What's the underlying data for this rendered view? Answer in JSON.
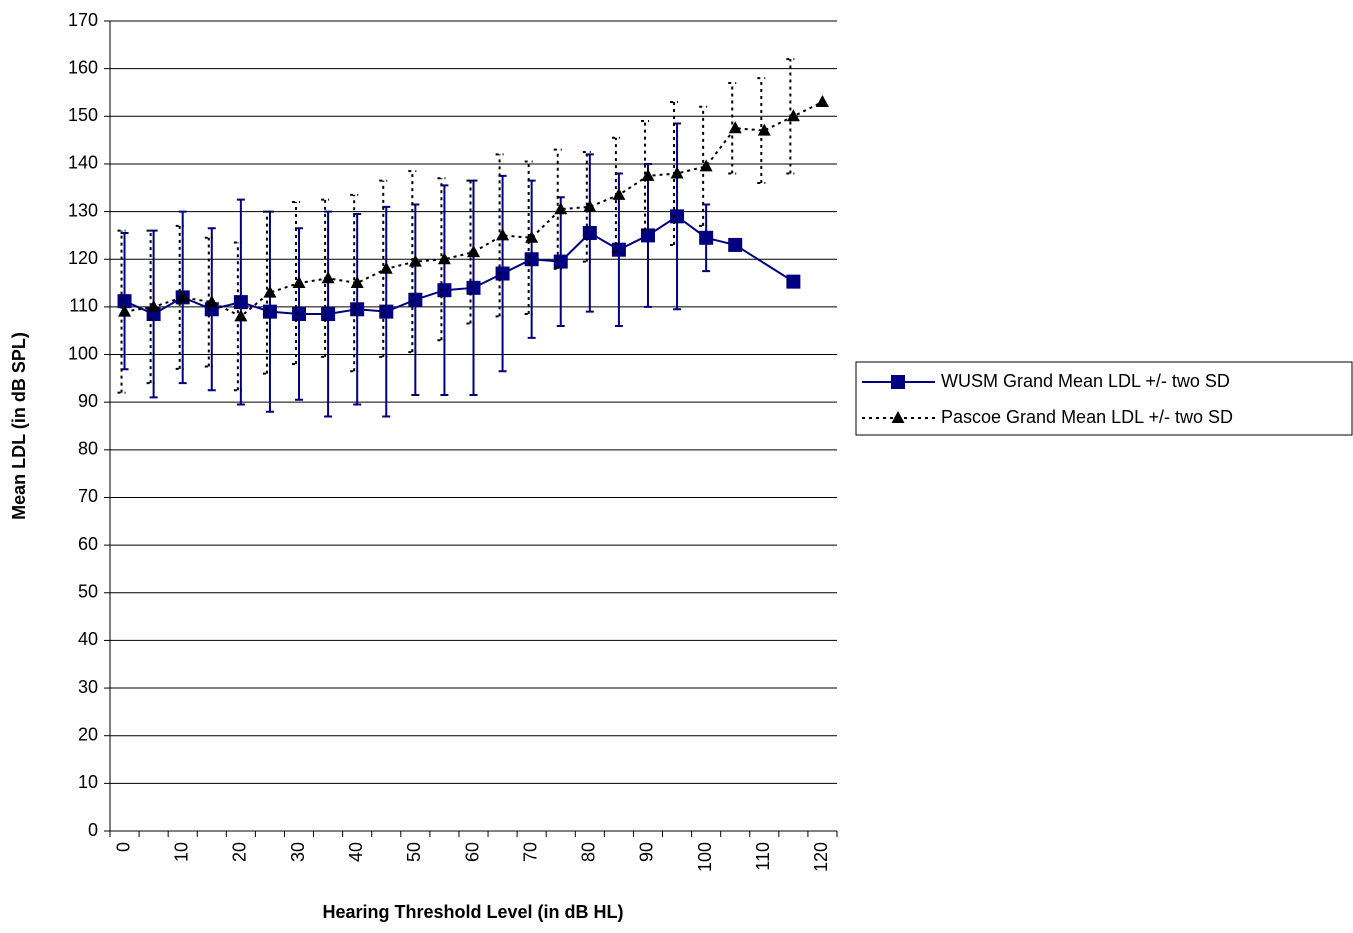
{
  "chart_data": {
    "type": "line",
    "x_label": "Hearing Threshold Level (in dB HL)",
    "y_label": "Mean LDL (in dB SPL)",
    "categories": [
      "0",
      null,
      "10",
      null,
      "20",
      null,
      "30",
      null,
      "40",
      null,
      "50",
      null,
      "60",
      null,
      "70",
      null,
      "80",
      null,
      "90",
      null,
      "100",
      null,
      "110",
      null,
      "120"
    ],
    "ylim": [
      0,
      170
    ],
    "yticks": [
      0,
      10,
      20,
      30,
      40,
      50,
      60,
      70,
      80,
      90,
      100,
      110,
      120,
      130,
      140,
      150,
      160,
      170
    ],
    "grid": true,
    "legend": "right",
    "series": [
      {
        "name": "WUSM Grand Mean LDL +/- two SD",
        "color": "#000080",
        "marker": "square",
        "dash": "solid",
        "values": [
          111.2,
          108.5,
          112,
          109.5,
          111,
          109,
          108.5,
          108.5,
          109.5,
          109,
          111.5,
          113.5,
          114,
          117,
          120,
          119.5,
          125.5,
          122,
          125,
          129,
          124.5,
          123,
          null,
          115.3,
          null
        ],
        "errors": [
          14.3,
          17.5,
          18,
          17,
          21.5,
          21,
          18,
          21.5,
          20,
          22,
          20,
          22,
          22.5,
          20.5,
          16.5,
          13.5,
          16.5,
          16,
          15,
          19.5,
          7,
          null,
          null,
          null,
          null
        ]
      },
      {
        "name": "Pascoe Grand Mean LDL +/- two SD",
        "color": "#000000",
        "marker": "triangle",
        "dash": "dotted",
        "values": [
          109,
          110,
          112,
          111,
          108,
          113,
          115,
          116,
          115,
          118,
          119.5,
          120,
          121.5,
          125,
          124.5,
          130.5,
          131,
          133.5,
          137.5,
          138,
          139.5,
          147.5,
          147,
          150,
          153
        ],
        "errors": [
          17,
          16,
          15,
          13.5,
          15.5,
          17,
          17,
          16.5,
          18.5,
          18.5,
          19,
          17,
          15,
          17,
          16,
          12.5,
          11.5,
          12,
          11.5,
          15,
          12.5,
          9.5,
          11,
          12,
          null
        ]
      }
    ]
  }
}
